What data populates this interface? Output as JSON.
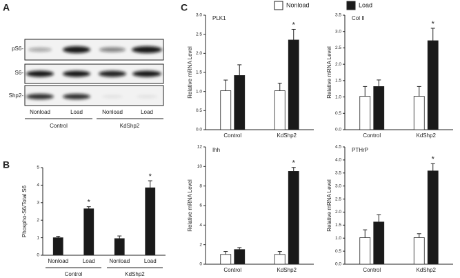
{
  "panel_labels": [
    "A",
    "B",
    "C"
  ],
  "blot": {
    "rows": [
      "pS6-",
      "S6-",
      "Shp2-"
    ],
    "lanes": [
      "Nonload",
      "Load",
      "Nonload",
      "Load"
    ],
    "groups": [
      "Control",
      "KdShp2"
    ]
  },
  "chart_data": [
    {
      "type": "bar",
      "y_label": "Phospho-S6/Total S6",
      "categories": [
        "Nonload",
        "Load",
        "Nonload",
        "Load"
      ],
      "groups": [
        "Control",
        "KdShp2"
      ],
      "values": [
        1.0,
        2.65,
        0.95,
        3.85
      ],
      "errors": [
        0.08,
        0.12,
        0.15,
        0.4
      ],
      "annotations": [
        null,
        "*",
        null,
        "*"
      ],
      "color": "#1a1a1a",
      "ylim": [
        0,
        5
      ],
      "yticks": [
        0,
        1,
        2,
        3,
        4,
        5
      ]
    },
    {
      "type": "bar",
      "title": "PLK1",
      "y_label": "Relative mRNA Level",
      "categories": [
        "Control",
        "KdShp2"
      ],
      "series": [
        {
          "name": "Nonload",
          "color": "#ffffff",
          "values": [
            1.02,
            1.02
          ],
          "errors": [
            0.28,
            0.2
          ],
          "annotations": [
            null,
            null
          ]
        },
        {
          "name": "Load",
          "color": "#1a1a1a",
          "values": [
            1.42,
            2.35
          ],
          "errors": [
            0.28,
            0.28
          ],
          "annotations": [
            null,
            "*"
          ]
        }
      ],
      "ylim": [
        0,
        3
      ],
      "yticks": [
        {
          "value": 0,
          "label": "0.0"
        },
        {
          "value": 0.5,
          "label": "0.5"
        },
        {
          "value": 1,
          "label": "1.0"
        },
        {
          "value": 1.5,
          "label": "1.5"
        },
        {
          "value": 2,
          "label": "2.0"
        },
        {
          "value": 2.5,
          "label": "2.5"
        },
        {
          "value": 3,
          "label": "3.0"
        }
      ]
    },
    {
      "type": "bar",
      "title": "Col II",
      "y_label": "Relative mRNA Level",
      "categories": [
        "Control",
        "KdShp2"
      ],
      "series": [
        {
          "name": "Nonload",
          "color": "#ffffff",
          "values": [
            1.02,
            1.02
          ],
          "errors": [
            0.3,
            0.3
          ],
          "annotations": [
            null,
            null
          ]
        },
        {
          "name": "Load",
          "color": "#1a1a1a",
          "values": [
            1.32,
            2.72
          ],
          "errors": [
            0.2,
            0.38
          ],
          "annotations": [
            null,
            "*"
          ]
        }
      ],
      "ylim": [
        0,
        3.5
      ],
      "yticks": [
        {
          "value": 0,
          "label": "0.0"
        },
        {
          "value": 0.5,
          "label": "0.5"
        },
        {
          "value": 1,
          "label": "1.0"
        },
        {
          "value": 1.5,
          "label": "1.5"
        },
        {
          "value": 2,
          "label": "2.0"
        },
        {
          "value": 2.5,
          "label": "2.5"
        },
        {
          "value": 3,
          "label": "3.0"
        },
        {
          "value": 3.5,
          "label": "3.5"
        }
      ]
    },
    {
      "type": "bar",
      "title": "Ihh",
      "y_label": "Relative mRNA Level",
      "categories": [
        "Control",
        "KdShp2"
      ],
      "series": [
        {
          "name": "Nonload",
          "color": "#ffffff",
          "values": [
            1.0,
            1.0
          ],
          "errors": [
            0.3,
            0.3
          ],
          "annotations": [
            null,
            null
          ]
        },
        {
          "name": "Load",
          "color": "#1a1a1a",
          "values": [
            1.5,
            9.5
          ],
          "errors": [
            0.2,
            0.4
          ],
          "annotations": [
            null,
            "*"
          ]
        }
      ],
      "ylim": [
        0,
        12
      ],
      "yticks": [
        0,
        2,
        4,
        6,
        8,
        10,
        12
      ]
    },
    {
      "type": "bar",
      "title": "PTHrP",
      "y_label": "Relative mRNA Level",
      "categories": [
        "Control",
        "KdShp2"
      ],
      "series": [
        {
          "name": "Nonload",
          "color": "#ffffff",
          "values": [
            1.02,
            1.02
          ],
          "errors": [
            0.3,
            0.15
          ],
          "annotations": [
            null,
            null
          ]
        },
        {
          "name": "Load",
          "color": "#1a1a1a",
          "values": [
            1.62,
            3.58
          ],
          "errors": [
            0.28,
            0.28
          ],
          "annotations": [
            null,
            "*"
          ]
        }
      ],
      "ylim": [
        0,
        4.5
      ],
      "yticks": [
        {
          "value": 0,
          "label": "0.0"
        },
        {
          "value": 0.5,
          "label": "0.5"
        },
        {
          "value": 1,
          "label": "1.0"
        },
        {
          "value": 1.5,
          "label": "1.5"
        },
        {
          "value": 2,
          "label": "2.0"
        },
        {
          "value": 2.5,
          "label": "2.5"
        },
        {
          "value": 3,
          "label": "3.0"
        },
        {
          "value": 3.5,
          "label": "3.5"
        },
        {
          "value": 4,
          "label": "4.0"
        },
        {
          "value": 4.5,
          "label": "4.5"
        }
      ]
    }
  ]
}
